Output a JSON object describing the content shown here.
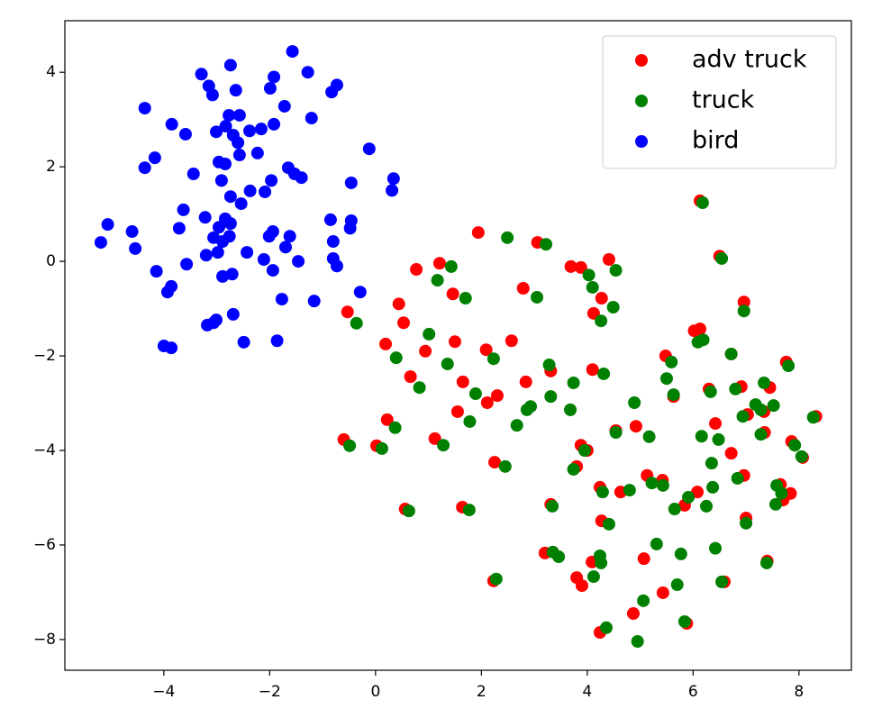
{
  "chart_data": {
    "type": "scatter",
    "xlim": [
      -5.87,
      8.99
    ],
    "ylim": [
      -8.65,
      5.09
    ],
    "xticks": [
      {
        "value": -4,
        "label": "−4"
      },
      {
        "value": -2,
        "label": "−2"
      },
      0,
      2,
      4,
      6,
      8
    ],
    "yticks": [
      {
        "value": -8,
        "label": "−8"
      },
      {
        "value": -6,
        "label": "−6"
      },
      {
        "value": -4,
        "label": "−4"
      },
      {
        "value": -2,
        "label": "−2"
      },
      0,
      2,
      4
    ],
    "legend": "upper right",
    "series": [
      {
        "name": "adv truck",
        "color": "red",
        "x": [
          6.13,
          1.94,
          3.06,
          6.5,
          4.41,
          1.21,
          3.69,
          3.88,
          0.77,
          1.46,
          2.79,
          4.27,
          0.44,
          6.96,
          -0.53,
          4.12,
          0.53,
          6.02,
          6.13,
          0.19,
          1.5,
          2.57,
          0.94,
          2.09,
          5.48,
          6.72,
          7.76,
          3.31,
          4.1,
          0.66,
          1.65,
          2.84,
          6.91,
          6.3,
          7.45,
          2.3,
          2.11,
          5.63,
          1.55,
          7.03,
          7.34,
          6.42,
          4.54,
          4.92,
          0.22,
          7.35,
          -0.6,
          1.12,
          3.88,
          0.02,
          6.72,
          4.0,
          7.86,
          8.07,
          8.32,
          2.25,
          3.8,
          5.13,
          5.42,
          6.96,
          4.24,
          4.63,
          6.08,
          7.65,
          7.84,
          7.7,
          3.31,
          5.84,
          0.56,
          1.64,
          7.0,
          4.27,
          3.2,
          5.07,
          4.09,
          7.4,
          3.8,
          3.9,
          2.23,
          6.59,
          5.43,
          5.88,
          4.87,
          4.24
        ],
        "y": [
          1.28,
          0.61,
          0.4,
          0.11,
          0.04,
          -0.04,
          -0.11,
          -0.13,
          -0.17,
          -0.69,
          -0.57,
          -0.78,
          -0.9,
          -0.86,
          -1.07,
          -1.1,
          -1.3,
          -1.47,
          -1.43,
          -1.75,
          -1.7,
          -1.68,
          -1.9,
          -1.87,
          -2.0,
          -1.96,
          -2.13,
          -2.32,
          -2.29,
          -2.44,
          -2.55,
          -2.55,
          -2.65,
          -2.7,
          -2.67,
          -2.84,
          -2.99,
          -2.86,
          -3.18,
          -3.24,
          -3.18,
          -3.43,
          -3.58,
          -3.49,
          -3.35,
          -3.62,
          -3.77,
          -3.75,
          -3.89,
          -3.9,
          -4.06,
          -4.0,
          -3.81,
          -4.15,
          -3.28,
          -4.25,
          -4.34,
          -4.53,
          -4.63,
          -4.53,
          -4.78,
          -4.88,
          -4.88,
          -4.72,
          -4.91,
          -5.05,
          -5.14,
          -5.16,
          -5.24,
          -5.2,
          -5.43,
          -5.49,
          -6.17,
          -6.29,
          -6.36,
          -6.34,
          -6.69,
          -6.86,
          -6.76,
          -6.78,
          -7.01,
          -7.66,
          -7.45,
          -7.85
        ]
      },
      {
        "name": "truck",
        "color": "green",
        "x": [
          6.18,
          2.49,
          3.22,
          6.54,
          4.54,
          1.43,
          4.03,
          1.17,
          4.1,
          1.7,
          3.05,
          4.49,
          6.96,
          4.26,
          -0.36,
          1.01,
          6.19,
          6.09,
          6.72,
          0.39,
          2.23,
          5.59,
          7.8,
          1.36,
          3.28,
          5.5,
          4.31,
          3.74,
          7.34,
          0.83,
          1.89,
          6.33,
          6.8,
          3.31,
          5.63,
          4.89,
          7.18,
          7.52,
          2.93,
          2.86,
          3.68,
          6.94,
          7.28,
          8.27,
          1.78,
          2.67,
          0.37,
          4.54,
          7.28,
          6.16,
          5.17,
          6.48,
          7.92,
          -0.49,
          1.28,
          0.12,
          3.95,
          8.05,
          6.35,
          2.45,
          3.74,
          6.84,
          5.22,
          5.43,
          6.37,
          4.29,
          4.8,
          7.58,
          7.67,
          5.91,
          6.25,
          7.56,
          5.65,
          3.34,
          1.77,
          0.63,
          4.41,
          7.0,
          6.42,
          5.31,
          3.35,
          3.46,
          5.77,
          4.24,
          4.26,
          7.39,
          4.12,
          2.28,
          5.7,
          6.54,
          5.06,
          5.84,
          4.36,
          4.95
        ],
        "y": [
          1.24,
          0.5,
          0.36,
          0.06,
          -0.19,
          -0.11,
          -0.29,
          -0.4,
          -0.55,
          -0.78,
          -0.76,
          -0.97,
          -1.05,
          -1.26,
          -1.31,
          -1.54,
          -1.66,
          -1.71,
          -1.96,
          -2.04,
          -2.06,
          -2.13,
          -2.21,
          -2.17,
          -2.19,
          -2.48,
          -2.38,
          -2.57,
          -2.57,
          -2.67,
          -2.8,
          -2.76,
          -2.7,
          -2.86,
          -2.82,
          -2.99,
          -3.03,
          -3.05,
          -3.07,
          -3.14,
          -3.14,
          -3.28,
          -3.14,
          -3.3,
          -3.39,
          -3.47,
          -3.52,
          -3.62,
          -3.66,
          -3.7,
          -3.71,
          -3.77,
          -3.89,
          -3.9,
          -3.89,
          -3.96,
          -4.0,
          -4.13,
          -4.27,
          -4.34,
          -4.4,
          -4.59,
          -4.69,
          -4.74,
          -4.78,
          -4.88,
          -4.84,
          -4.74,
          -4.91,
          -4.99,
          -5.18,
          -5.14,
          -5.24,
          -5.18,
          -5.26,
          -5.28,
          -5.56,
          -5.54,
          -6.07,
          -5.98,
          -6.15,
          -6.25,
          -6.19,
          -6.23,
          -6.38,
          -6.38,
          -6.67,
          -6.72,
          -6.84,
          -6.78,
          -7.18,
          -7.62,
          -7.75,
          -8.04
        ]
      },
      {
        "name": "bird",
        "color": "blue",
        "x": [
          -1.57,
          -2.74,
          -3.29,
          -1.28,
          -1.92,
          -0.73,
          -3.15,
          -2.64,
          -1.99,
          -0.83,
          -3.08,
          -4.36,
          -1.72,
          -2.77,
          -2.57,
          -1.21,
          -3.85,
          -1.92,
          -2.83,
          -3.01,
          -2.38,
          -2.16,
          -3.59,
          -2.69,
          -2.6,
          -0.12,
          -2.23,
          -4.17,
          -2.57,
          -2.96,
          -2.84,
          -4.36,
          -1.65,
          -3.44,
          -1.53,
          -1.4,
          0.34,
          -1.97,
          -2.91,
          -0.46,
          -2.37,
          0.31,
          -2.09,
          -2.74,
          -2.54,
          -3.63,
          -3.22,
          -2.84,
          -0.85,
          -0.46,
          -5.06,
          -2.74,
          -2.96,
          -3.71,
          -0.48,
          -4.6,
          -1.94,
          -2.01,
          -2.76,
          -3.06,
          -1.62,
          -0.8,
          -5.19,
          -2.89,
          -2.43,
          -4.54,
          -1.7,
          -3.2,
          -2.98,
          -0.8,
          -2.11,
          -1.46,
          -3.57,
          -0.73,
          -1.94,
          -4.14,
          -2.71,
          -2.89,
          -3.86,
          -3.93,
          -0.29,
          -1.77,
          -1.16,
          -2.69,
          -3.01,
          -3.18,
          -3.06,
          -2.49,
          -1.86,
          -4.0,
          -3.86
        ],
        "y": [
          4.44,
          4.15,
          3.96,
          4.0,
          3.9,
          3.73,
          3.71,
          3.62,
          3.66,
          3.58,
          3.52,
          3.24,
          3.28,
          3.09,
          3.09,
          3.03,
          2.9,
          2.9,
          2.86,
          2.74,
          2.76,
          2.8,
          2.69,
          2.67,
          2.51,
          2.38,
          2.29,
          2.19,
          2.25,
          2.1,
          2.06,
          1.98,
          1.98,
          1.85,
          1.85,
          1.77,
          1.75,
          1.71,
          1.71,
          1.66,
          1.49,
          1.5,
          1.47,
          1.37,
          1.22,
          1.09,
          0.93,
          0.9,
          0.88,
          0.86,
          0.78,
          0.8,
          0.72,
          0.7,
          0.7,
          0.63,
          0.63,
          0.53,
          0.53,
          0.5,
          0.53,
          0.42,
          0.4,
          0.42,
          0.19,
          0.27,
          0.3,
          0.13,
          0.19,
          0.06,
          0.04,
          0.0,
          -0.06,
          -0.1,
          -0.19,
          -0.21,
          -0.27,
          -0.32,
          -0.53,
          -0.65,
          -0.65,
          -0.8,
          -0.84,
          -1.12,
          -1.24,
          -1.35,
          -1.3,
          -1.71,
          -1.68,
          -1.79,
          -1.83
        ]
      }
    ]
  }
}
